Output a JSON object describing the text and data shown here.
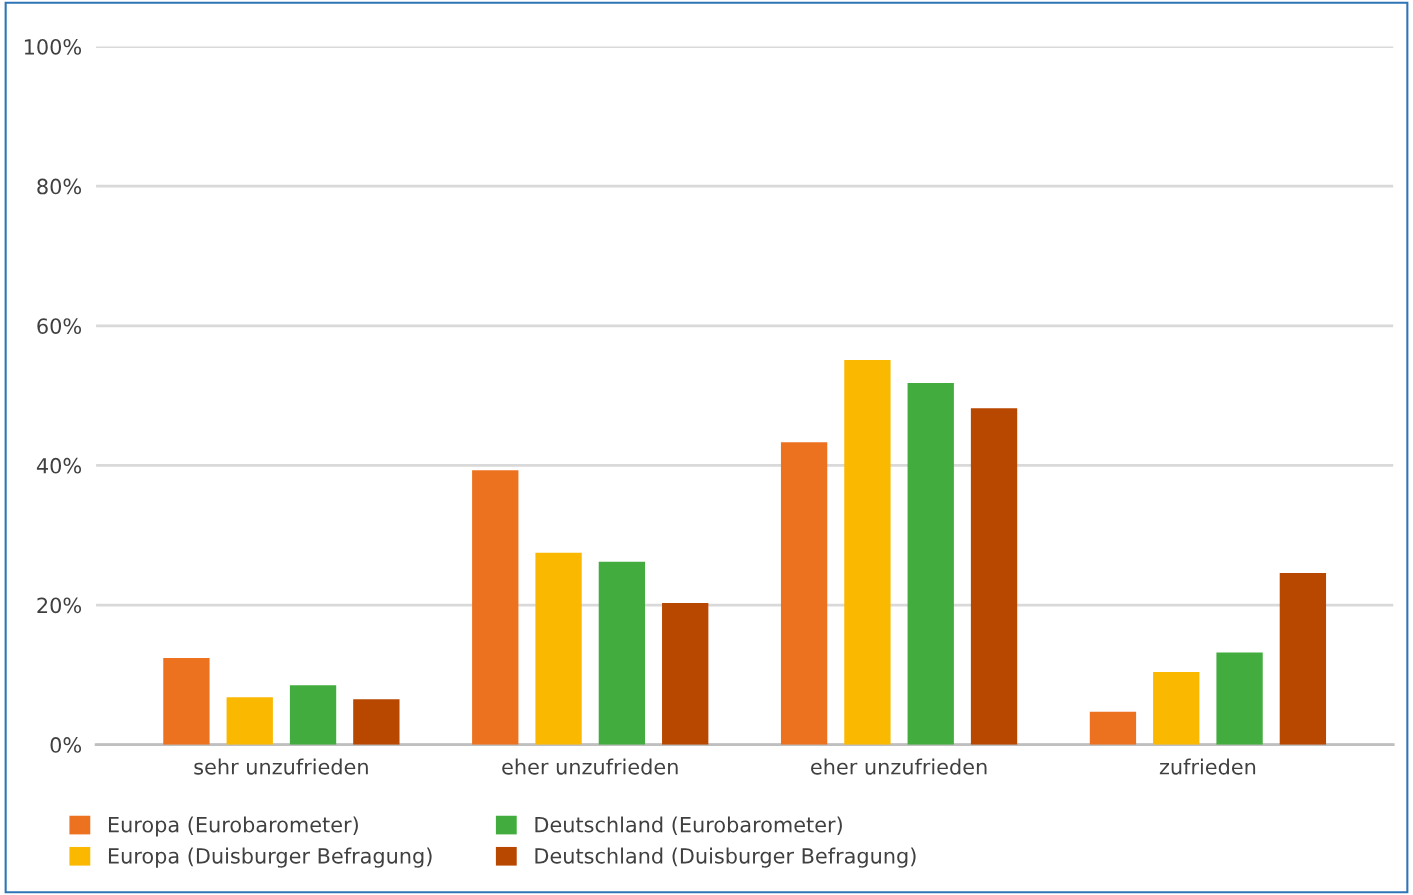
{
  "chart_data": {
    "type": "bar",
    "categories": [
      "sehr unzufrieden",
      "eher unzufrieden",
      "eher unzufrieden",
      "zufrieden"
    ],
    "series": [
      {
        "name": "Europa (Eurobarometer)",
        "color": "#ec7220",
        "values": [
          12.4,
          39.3,
          43.3,
          4.7
        ]
      },
      {
        "name": "Europa (Duisburger Befragung)",
        "color": "#fbb800",
        "values": [
          6.8,
          27.5,
          55.1,
          10.4
        ]
      },
      {
        "name": "Deutschland (Eurobarometer)",
        "color": "#42ad3e",
        "values": [
          8.5,
          26.2,
          51.8,
          13.2
        ]
      },
      {
        "name": "Deutschland (Duisburger Befragung)",
        "color": "#b84700",
        "values": [
          6.5,
          20.3,
          48.2,
          24.6
        ]
      }
    ],
    "ylim": [
      0,
      100
    ],
    "yticks": [
      {
        "value": 0,
        "label": "0%"
      },
      {
        "value": 20,
        "label": "20%"
      },
      {
        "value": 40,
        "label": "40%"
      },
      {
        "value": 60,
        "label": "60%"
      },
      {
        "value": 80,
        "label": "80%"
      },
      {
        "value": 100,
        "label": "100%"
      }
    ],
    "grid": "y",
    "legend": "bottom"
  }
}
